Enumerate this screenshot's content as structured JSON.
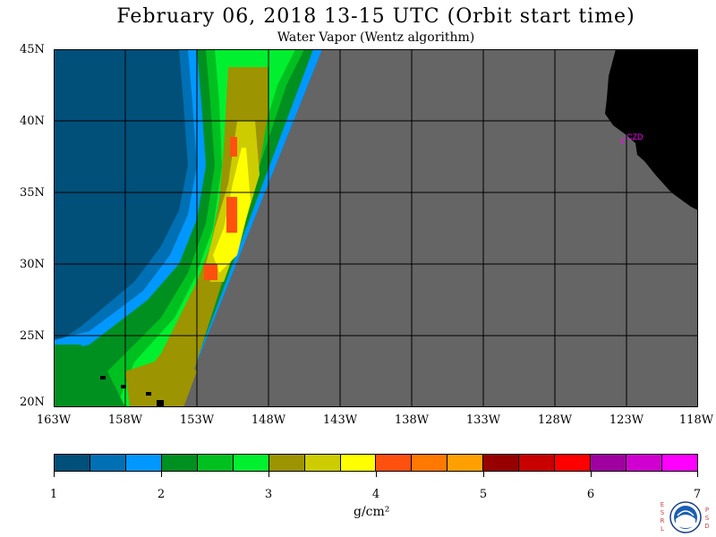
{
  "title": "February 06, 2018  13-15 UTC  (Orbit start time)",
  "subtitle": "Water Vapor (Wentz algorithm)",
  "map": {
    "lat_labels": [
      "45N",
      "40N",
      "35N",
      "30N",
      "25N",
      "20N"
    ],
    "lon_labels": [
      "163W",
      "158W",
      "153W",
      "148W",
      "143W",
      "138W",
      "133W",
      "128W",
      "123W",
      "118W"
    ],
    "station_label": "CZD",
    "colors": {
      "no_data": "#656565",
      "land": "#000000",
      "grid": "#000000",
      "station": "#ff00ff"
    }
  },
  "colorbar": {
    "colors": [
      "#00507a",
      "#0070b4",
      "#0098ff",
      "#009020",
      "#00c020",
      "#00f030",
      "#9c9400",
      "#cccc00",
      "#ffff00",
      "#ff5010",
      "#ff7800",
      "#ffa000",
      "#960000",
      "#c80000",
      "#ff0000",
      "#a000a0",
      "#d000d0",
      "#ff00ff"
    ],
    "tick_labels": [
      "1",
      "2",
      "3",
      "4",
      "5",
      "6",
      "7"
    ],
    "unit": "g/cm²"
  },
  "logo": {
    "left_text": "ESRL",
    "right_text": "PSD",
    "center_text": "NOAA"
  }
}
